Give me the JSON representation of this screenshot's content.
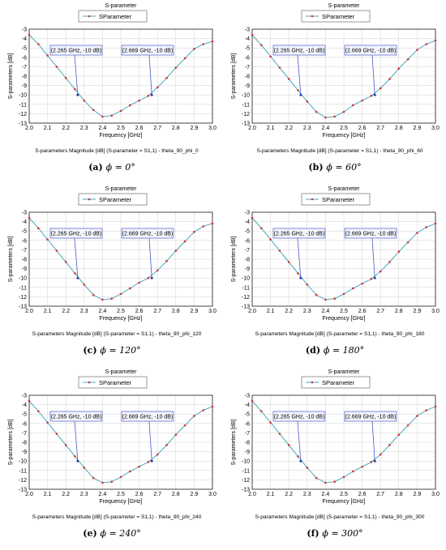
{
  "chart_data": [
    {
      "type": "line",
      "title": "S-parameter",
      "legend": "SParameter",
      "legend_position": "top-center",
      "xlabel": "Frequency [GHz]",
      "ylabel": "S-parameters [dB]",
      "xlim": [
        2.0,
        3.0
      ],
      "ylim": [
        -13,
        -3
      ],
      "xticks": [
        "2.0",
        "2.1",
        "2.2",
        "2.3",
        "2.4",
        "2.5",
        "2.6",
        "2.7",
        "2.8",
        "2.9",
        "3.0"
      ],
      "yticks": [
        "-3",
        "-4",
        "-5",
        "-6",
        "-7",
        "-8",
        "-9",
        "-10",
        "-11",
        "-12",
        "-13"
      ],
      "grid": true,
      "line_color": "#4aa8c0",
      "marker_color": "#d83030",
      "series": [
        {
          "name": "SParameter",
          "x": [
            2.0,
            2.05,
            2.1,
            2.15,
            2.2,
            2.25,
            2.3,
            2.35,
            2.4,
            2.45,
            2.5,
            2.55,
            2.6,
            2.65,
            2.7,
            2.75,
            2.8,
            2.85,
            2.9,
            2.95,
            3.0
          ],
          "y": [
            -3.6,
            -4.6,
            -5.8,
            -7.0,
            -8.2,
            -9.4,
            -10.6,
            -11.6,
            -12.3,
            -12.2,
            -11.7,
            -11.1,
            -10.6,
            -10.1,
            -9.2,
            -8.2,
            -7.1,
            -6.1,
            -5.1,
            -4.6,
            -4.3
          ]
        }
      ],
      "markers_x": [
        2.0,
        2.05,
        2.1,
        2.15,
        2.2,
        2.25,
        2.3,
        2.35,
        2.4,
        2.45,
        2.5,
        2.55,
        2.6,
        2.65,
        2.7,
        2.75,
        2.8,
        2.85,
        2.9,
        2.95,
        3.0
      ],
      "annotations": [
        {
          "text": "(2.265 GHz, -10 dB)",
          "x": 2.265,
          "y": -10
        },
        {
          "text": "(2.669 GHz, -10 dB)",
          "x": 2.669,
          "y": -10
        }
      ],
      "subtitle": "S-parameters Magnitude [dB] (S-parameter = S1,1) - theta_90_phi_0",
      "caption_tag": "(a)",
      "caption_angle": "ϕ = 0°"
    },
    {
      "type": "line",
      "title": "S-parameter",
      "legend": "SParameter",
      "legend_position": "top-center",
      "xlabel": "Frequency [GHz]",
      "ylabel": "S-parameters [dB]",
      "xlim": [
        2.0,
        3.0
      ],
      "ylim": [
        -13,
        -3
      ],
      "xticks": [
        "2.0",
        "2.1",
        "2.2",
        "2.3",
        "2.4",
        "2.5",
        "2.6",
        "2.7",
        "2.8",
        "2.9",
        "3.0"
      ],
      "yticks": [
        "-3",
        "-4",
        "-5",
        "-6",
        "-7",
        "-8",
        "-9",
        "-10",
        "-11",
        "-12",
        "-13"
      ],
      "grid": true,
      "line_color": "#4aa8c0",
      "marker_color": "#d83030",
      "series": [
        {
          "name": "SParameter",
          "x": [
            2.0,
            2.05,
            2.1,
            2.15,
            2.2,
            2.25,
            2.3,
            2.35,
            2.4,
            2.45,
            2.5,
            2.55,
            2.6,
            2.65,
            2.7,
            2.75,
            2.8,
            2.85,
            2.9,
            2.95,
            3.0
          ],
          "y": [
            -3.6,
            -4.7,
            -5.9,
            -7.1,
            -8.3,
            -9.5,
            -10.7,
            -11.8,
            -12.4,
            -12.3,
            -11.8,
            -11.1,
            -10.6,
            -10.1,
            -9.3,
            -8.3,
            -7.2,
            -6.2,
            -5.2,
            -4.6,
            -4.2
          ]
        }
      ],
      "markers_x": [
        2.0,
        2.05,
        2.1,
        2.15,
        2.2,
        2.25,
        2.3,
        2.35,
        2.4,
        2.45,
        2.5,
        2.55,
        2.6,
        2.65,
        2.7,
        2.75,
        2.8,
        2.85,
        2.9,
        2.95,
        3.0
      ],
      "annotations": [
        {
          "text": "(2.265 GHz, -10 dB)",
          "x": 2.265,
          "y": -10
        },
        {
          "text": "(2.669 GHz, -10 dB)",
          "x": 2.669,
          "y": -10
        }
      ],
      "subtitle": "S-parameters Magnitude [dB] (S-parameter = S1,1) - theta_90_phi_60",
      "caption_tag": "(b)",
      "caption_angle": "ϕ = 60°"
    },
    {
      "type": "line",
      "title": "S-parameter",
      "legend": "SParameter",
      "legend_position": "top-center",
      "xlabel": "Frequency [GHz]",
      "ylabel": "S-parameters [dB]",
      "xlim": [
        2.0,
        3.0
      ],
      "ylim": [
        -13,
        -3
      ],
      "xticks": [
        "2.0",
        "2.1",
        "2.2",
        "2.3",
        "2.4",
        "2.5",
        "2.6",
        "2.7",
        "2.8",
        "2.9",
        "3.0"
      ],
      "yticks": [
        "-3",
        "-4",
        "-5",
        "-6",
        "-7",
        "-8",
        "-9",
        "-10",
        "-11",
        "-12",
        "-13"
      ],
      "grid": true,
      "line_color": "#4aa8c0",
      "marker_color": "#d83030",
      "series": [
        {
          "name": "SParameter",
          "x": [
            2.0,
            2.05,
            2.1,
            2.15,
            2.2,
            2.25,
            2.3,
            2.35,
            2.4,
            2.45,
            2.5,
            2.55,
            2.6,
            2.65,
            2.7,
            2.75,
            2.8,
            2.85,
            2.9,
            2.95,
            3.0
          ],
          "y": [
            -3.6,
            -4.7,
            -5.9,
            -7.1,
            -8.3,
            -9.5,
            -10.7,
            -11.8,
            -12.3,
            -12.2,
            -11.7,
            -11.1,
            -10.5,
            -10.0,
            -9.2,
            -8.2,
            -7.1,
            -6.1,
            -5.1,
            -4.5,
            -4.2
          ]
        }
      ],
      "markers_x": [
        2.0,
        2.05,
        2.1,
        2.15,
        2.2,
        2.25,
        2.3,
        2.35,
        2.4,
        2.45,
        2.5,
        2.55,
        2.6,
        2.65,
        2.7,
        2.75,
        2.8,
        2.85,
        2.9,
        2.95,
        3.0
      ],
      "annotations": [
        {
          "text": "(2.265 GHz, -10 dB)",
          "x": 2.265,
          "y": -10
        },
        {
          "text": "(2.669 GHz, -10 dB)",
          "x": 2.669,
          "y": -10
        }
      ],
      "subtitle": "S-parameters Magnitude [dB] (S-parameter = S1,1) - theta_90_phi_120",
      "caption_tag": "(c)",
      "caption_angle": "ϕ = 120°"
    },
    {
      "type": "line",
      "title": "S-parameter",
      "legend": "SParameter",
      "legend_position": "top-center",
      "xlabel": "Frequency [GHz]",
      "ylabel": "S-parameters [dB]",
      "xlim": [
        2.0,
        3.0
      ],
      "ylim": [
        -13,
        -3
      ],
      "xticks": [
        "2.0",
        "2.1",
        "2.2",
        "2.3",
        "2.4",
        "2.5",
        "2.6",
        "2.7",
        "2.8",
        "2.9",
        "3.0"
      ],
      "yticks": [
        "-3",
        "-4",
        "-5",
        "-6",
        "-7",
        "-8",
        "-9",
        "-10",
        "-11",
        "-12",
        "-13"
      ],
      "grid": true,
      "line_color": "#4aa8c0",
      "marker_color": "#d83030",
      "series": [
        {
          "name": "SParameter",
          "x": [
            2.0,
            2.05,
            2.1,
            2.15,
            2.2,
            2.25,
            2.3,
            2.35,
            2.4,
            2.45,
            2.5,
            2.55,
            2.6,
            2.65,
            2.7,
            2.75,
            2.8,
            2.85,
            2.9,
            2.95,
            3.0
          ],
          "y": [
            -3.6,
            -4.7,
            -5.9,
            -7.1,
            -8.3,
            -9.5,
            -10.7,
            -11.8,
            -12.3,
            -12.2,
            -11.7,
            -11.1,
            -10.6,
            -10.1,
            -9.3,
            -8.3,
            -7.2,
            -6.2,
            -5.2,
            -4.6,
            -4.2
          ]
        }
      ],
      "markers_x": [
        2.0,
        2.05,
        2.1,
        2.15,
        2.2,
        2.25,
        2.3,
        2.35,
        2.4,
        2.45,
        2.5,
        2.55,
        2.6,
        2.65,
        2.7,
        2.75,
        2.8,
        2.85,
        2.9,
        2.95,
        3.0
      ],
      "annotations": [
        {
          "text": "(2.265 GHz, -10 dB)",
          "x": 2.265,
          "y": -10
        },
        {
          "text": "(2.669 GHz, -10 dB)",
          "x": 2.669,
          "y": -10
        }
      ],
      "subtitle": "S-parameters Magnitude [dB] (S-parameter = S1,1) - theta_90_phi_180",
      "caption_tag": "(d)",
      "caption_angle": "ϕ = 180°"
    },
    {
      "type": "line",
      "title": "S-parameter",
      "legend": "SParameter",
      "legend_position": "top-center",
      "xlabel": "Frequency [GHz]",
      "ylabel": "S-parameters [dB]",
      "xlim": [
        2.0,
        3.0
      ],
      "ylim": [
        -13,
        -3
      ],
      "xticks": [
        "2.0",
        "2.1",
        "2.2",
        "2.3",
        "2.4",
        "2.5",
        "2.6",
        "2.7",
        "2.8",
        "2.9",
        "3.0"
      ],
      "yticks": [
        "-3",
        "-4",
        "-5",
        "-6",
        "-7",
        "-8",
        "-9",
        "-10",
        "-11",
        "-12",
        "-13"
      ],
      "grid": true,
      "line_color": "#4aa8c0",
      "marker_color": "#d83030",
      "series": [
        {
          "name": "SParameter",
          "x": [
            2.0,
            2.05,
            2.1,
            2.15,
            2.2,
            2.25,
            2.3,
            2.35,
            2.4,
            2.45,
            2.5,
            2.55,
            2.6,
            2.65,
            2.7,
            2.75,
            2.8,
            2.85,
            2.9,
            2.95,
            3.0
          ],
          "y": [
            -3.6,
            -4.7,
            -5.9,
            -7.1,
            -8.3,
            -9.5,
            -10.7,
            -11.8,
            -12.3,
            -12.2,
            -11.7,
            -11.1,
            -10.6,
            -10.1,
            -9.3,
            -8.3,
            -7.2,
            -6.2,
            -5.2,
            -4.6,
            -4.2
          ]
        }
      ],
      "markers_x": [
        2.0,
        2.05,
        2.1,
        2.15,
        2.2,
        2.25,
        2.3,
        2.35,
        2.4,
        2.45,
        2.5,
        2.55,
        2.6,
        2.65,
        2.7,
        2.75,
        2.8,
        2.85,
        2.9,
        2.95,
        3.0
      ],
      "annotations": [
        {
          "text": "(2.265 GHz, -10 dB)",
          "x": 2.265,
          "y": -10
        },
        {
          "text": "(2.669 GHz, -10 dB)",
          "x": 2.669,
          "y": -10
        }
      ],
      "subtitle": "S-parameters Magnitude [dB] (S-parameter = S1,1) - theta_90_phi_240",
      "caption_tag": "(e)",
      "caption_angle": "ϕ = 240°"
    },
    {
      "type": "line",
      "title": "S-parameter",
      "legend": "SParameter",
      "legend_position": "top-center",
      "xlabel": "Frequency [GHz]",
      "ylabel": "S-parameters [dB]",
      "xlim": [
        2.0,
        3.0
      ],
      "ylim": [
        -13,
        -3
      ],
      "xticks": [
        "2.0",
        "2.1",
        "2.2",
        "2.3",
        "2.4",
        "2.5",
        "2.6",
        "2.7",
        "2.8",
        "2.9",
        "3.0"
      ],
      "yticks": [
        "-3",
        "-4",
        "-5",
        "-6",
        "-7",
        "-8",
        "-9",
        "-10",
        "-11",
        "-12",
        "-13"
      ],
      "grid": true,
      "line_color": "#4aa8c0",
      "marker_color": "#d83030",
      "series": [
        {
          "name": "SParameter",
          "x": [
            2.0,
            2.05,
            2.1,
            2.15,
            2.2,
            2.25,
            2.3,
            2.35,
            2.4,
            2.45,
            2.5,
            2.55,
            2.6,
            2.65,
            2.7,
            2.75,
            2.8,
            2.85,
            2.9,
            2.95,
            3.0
          ],
          "y": [
            -3.6,
            -4.7,
            -5.9,
            -7.1,
            -8.3,
            -9.5,
            -10.7,
            -11.8,
            -12.3,
            -12.2,
            -11.7,
            -11.1,
            -10.6,
            -10.1,
            -9.3,
            -8.3,
            -7.2,
            -6.2,
            -5.2,
            -4.6,
            -4.2
          ]
        }
      ],
      "markers_x": [
        2.0,
        2.05,
        2.1,
        2.15,
        2.2,
        2.25,
        2.3,
        2.35,
        2.4,
        2.45,
        2.5,
        2.55,
        2.6,
        2.65,
        2.7,
        2.75,
        2.8,
        2.85,
        2.9,
        2.95,
        3.0
      ],
      "annotations": [
        {
          "text": "(2.265 GHz, -10 dB)",
          "x": 2.265,
          "y": -10
        },
        {
          "text": "(2.669 GHz, -10 dB)",
          "x": 2.669,
          "y": -10
        }
      ],
      "subtitle": "S-parameters Magnitude [dB] (S-parameter = S1,1) - theta_90_phi_300",
      "caption_tag": "(f)",
      "caption_angle": "ϕ = 300°"
    }
  ]
}
